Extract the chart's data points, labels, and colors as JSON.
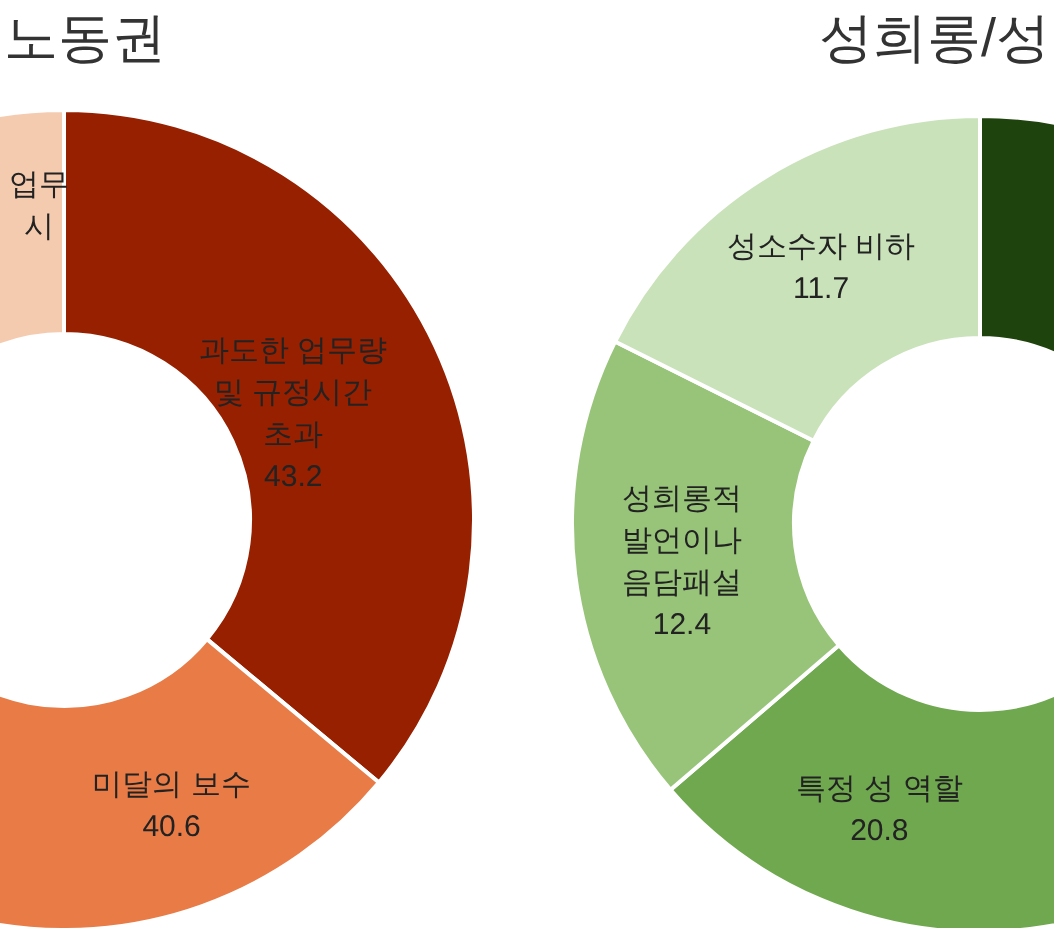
{
  "chart_data": [
    {
      "type": "donut",
      "title": "노동권",
      "categories": [
        "과도한 업무량\n및 규정시간\n초과",
        "미달의 보수",
        "업무\n시"
      ],
      "values": [
        43.2,
        40.6,
        36
      ],
      "colors": [
        "#962000",
        "#e87b46",
        "#f5cbb0"
      ],
      "value_labels": [
        "43.2",
        "40.6",
        null
      ]
    },
    {
      "type": "donut",
      "title": "성희롱/성",
      "categories": [
        null,
        "특정 성 역할",
        "성희롱적\n발언이나\n음담패설",
        "성소수자 비하"
      ],
      "values": [
        21.5,
        20.8,
        12.4,
        11.7
      ],
      "colors": [
        "#1f430c",
        "#6fa84f",
        "#98c47a",
        "#c9e2ba"
      ],
      "value_labels": [
        null,
        "20.8",
        "12.4",
        "11.7"
      ]
    }
  ]
}
